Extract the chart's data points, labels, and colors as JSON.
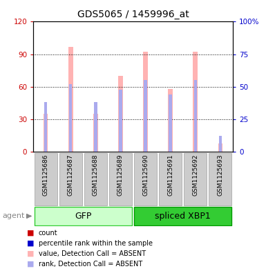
{
  "title": "GDS5065 / 1459996_at",
  "samples": [
    "GSM1125686",
    "GSM1125687",
    "GSM1125688",
    "GSM1125689",
    "GSM1125690",
    "GSM1125691",
    "GSM1125692",
    "GSM1125693"
  ],
  "pink_values": [
    35,
    97,
    35,
    70,
    92,
    58,
    92,
    8
  ],
  "blue_rank_values": [
    38,
    52,
    38,
    48,
    55,
    44,
    55,
    12
  ],
  "ylim_left": [
    0,
    120
  ],
  "ylim_right": [
    0,
    100
  ],
  "yticks_left": [
    0,
    30,
    60,
    90,
    120
  ],
  "yticks_right": [
    0,
    25,
    50,
    75,
    100
  ],
  "ytick_labels_left": [
    "0",
    "30",
    "60",
    "90",
    "120"
  ],
  "ytick_labels_right": [
    "0",
    "25",
    "50",
    "75",
    "100%"
  ],
  "left_tick_color": "#cc0000",
  "right_tick_color": "#0000cc",
  "pink_color": "#ffb3b3",
  "blue_color": "#aaaaee",
  "background_color": "#ffffff",
  "gray_box_color": "#cccccc",
  "gray_box_edge": "#aaaaaa",
  "gfp_color_light": "#ccffcc",
  "gfp_color_dark": "#33cc33",
  "xbp1_color_light": "#33cc33",
  "xbp1_color_dark": "#009900",
  "legend_items": [
    {
      "color": "#cc0000",
      "label": "count"
    },
    {
      "color": "#0000cc",
      "label": "percentile rank within the sample"
    },
    {
      "color": "#ffb3b3",
      "label": "value, Detection Call = ABSENT"
    },
    {
      "color": "#aaaaee",
      "label": "rank, Detection Call = ABSENT"
    }
  ],
  "figsize": [
    3.85,
    3.93
  ],
  "dpi": 100
}
